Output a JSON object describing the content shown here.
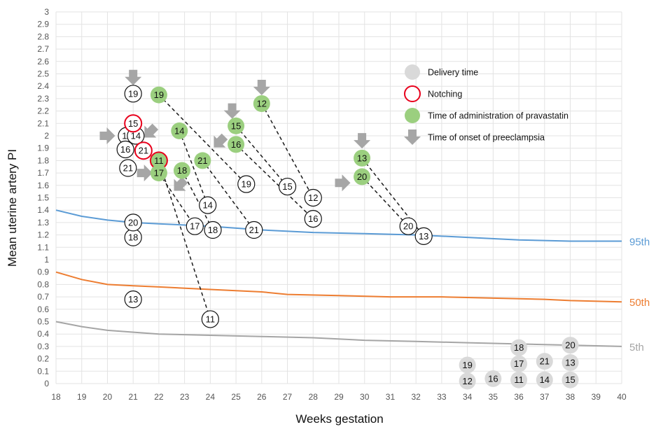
{
  "chart_data": {
    "type": "scatter",
    "title": "",
    "xlabel": "Weeks gestation",
    "ylabel": "Mean uterine artery PI",
    "xlim": [
      18,
      40
    ],
    "ylim": [
      0,
      3
    ],
    "x_ticks": [
      "18",
      "19",
      "20",
      "21",
      "22",
      "23",
      "24",
      "25",
      "26",
      "27",
      "28",
      "29",
      "30",
      "31",
      "32",
      "33",
      "34",
      "35",
      "36",
      "37",
      "38",
      "39",
      "40"
    ],
    "y_ticks": [
      "0",
      "0.1",
      "0.2",
      "0.3",
      "0.4",
      "0.5",
      "0.6",
      "0.7",
      "0.8",
      "0.9",
      "1",
      "1.1",
      "1.2",
      "1.3",
      "1.4",
      "1.5",
      "1.6",
      "1.7",
      "1.8",
      "1.9",
      "2",
      "2.1",
      "2.2",
      "2.3",
      "2.4",
      "2.5",
      "2.6",
      "2.7",
      "2.8",
      "2.9",
      "3"
    ],
    "grid": true,
    "legend_position": "top-right",
    "legend": [
      {
        "key": "delivery",
        "label": "Delivery time",
        "color": "#d9d9d9"
      },
      {
        "key": "notching",
        "label": "Notching",
        "color": "#e8001c"
      },
      {
        "key": "pravastatin",
        "label": "Time of administration of pravastatin",
        "color": "#9bcf7f"
      },
      {
        "key": "onset",
        "label": "Time of onset of preeclampsia",
        "color": "#a6a6a6"
      }
    ],
    "reference_curves": [
      {
        "label": "95th",
        "color": "#5b9bd5",
        "points": [
          [
            18,
            1.4
          ],
          [
            19,
            1.35
          ],
          [
            20,
            1.32
          ],
          [
            21,
            1.3
          ],
          [
            22,
            1.29
          ],
          [
            24,
            1.27
          ],
          [
            26,
            1.24
          ],
          [
            28,
            1.22
          ],
          [
            30,
            1.21
          ],
          [
            32,
            1.2
          ],
          [
            34,
            1.18
          ],
          [
            36,
            1.16
          ],
          [
            38,
            1.15
          ],
          [
            40,
            1.15
          ]
        ]
      },
      {
        "label": "50th",
        "color": "#ed7d31",
        "points": [
          [
            18,
            0.9
          ],
          [
            19,
            0.84
          ],
          [
            20,
            0.8
          ],
          [
            21,
            0.79
          ],
          [
            22,
            0.78
          ],
          [
            24,
            0.76
          ],
          [
            26,
            0.74
          ],
          [
            27,
            0.72
          ],
          [
            29,
            0.71
          ],
          [
            31,
            0.7
          ],
          [
            33,
            0.7
          ],
          [
            35,
            0.69
          ],
          [
            37,
            0.68
          ],
          [
            38,
            0.67
          ],
          [
            40,
            0.66
          ]
        ]
      },
      {
        "label": "5th",
        "color": "#a5a5a5",
        "points": [
          [
            18,
            0.5
          ],
          [
            19,
            0.46
          ],
          [
            20,
            0.43
          ],
          [
            22,
            0.4
          ],
          [
            24,
            0.39
          ],
          [
            26,
            0.38
          ],
          [
            28,
            0.37
          ],
          [
            30,
            0.35
          ],
          [
            32,
            0.34
          ],
          [
            34,
            0.33
          ],
          [
            36,
            0.32
          ],
          [
            38,
            0.31
          ],
          [
            40,
            0.3
          ]
        ]
      }
    ],
    "patients": [
      {
        "id": "11",
        "points": [
          {
            "x": 20.75,
            "y": 2.0,
            "type": "open"
          },
          {
            "x": 22.0,
            "y": 1.8,
            "type": "pravastatin",
            "notched": true
          },
          {
            "x": 24.0,
            "y": 0.52,
            "type": "open"
          },
          {
            "x": 36.0,
            "y": 0.03,
            "type": "delivery"
          }
        ]
      },
      {
        "id": "12",
        "points": [
          {
            "x": 26.0,
            "y": 2.26,
            "type": "pravastatin"
          },
          {
            "x": 28.0,
            "y": 1.5,
            "type": "open"
          },
          {
            "x": 34.0,
            "y": 0.02,
            "type": "delivery"
          }
        ]
      },
      {
        "id": "13",
        "points": [
          {
            "x": 21.0,
            "y": 0.68,
            "type": "open"
          },
          {
            "x": 29.9,
            "y": 1.82,
            "type": "pravastatin"
          },
          {
            "x": 32.3,
            "y": 1.19,
            "type": "open"
          },
          {
            "x": 38.0,
            "y": 0.17,
            "type": "delivery"
          }
        ]
      },
      {
        "id": "14",
        "points": [
          {
            "x": 21.1,
            "y": 2.0,
            "type": "open"
          },
          {
            "x": 22.8,
            "y": 2.04,
            "type": "pravastatin"
          },
          {
            "x": 23.9,
            "y": 1.44,
            "type": "open"
          },
          {
            "x": 37.0,
            "y": 0.03,
            "type": "delivery"
          }
        ]
      },
      {
        "id": "15",
        "points": [
          {
            "x": 21.0,
            "y": 2.1,
            "type": "open",
            "notched": true
          },
          {
            "x": 25.0,
            "y": 2.08,
            "type": "pravastatin"
          },
          {
            "x": 27.0,
            "y": 1.59,
            "type": "open"
          },
          {
            "x": 38.0,
            "y": 0.03,
            "type": "delivery"
          }
        ]
      },
      {
        "id": "16",
        "points": [
          {
            "x": 20.7,
            "y": 1.89,
            "type": "open"
          },
          {
            "x": 25.0,
            "y": 1.93,
            "type": "pravastatin"
          },
          {
            "x": 28.0,
            "y": 1.33,
            "type": "open"
          },
          {
            "x": 35.0,
            "y": 0.04,
            "type": "delivery"
          }
        ]
      },
      {
        "id": "17",
        "points": [
          {
            "x": 22.0,
            "y": 1.7,
            "type": "pravastatin"
          },
          {
            "x": 23.4,
            "y": 1.27,
            "type": "open"
          },
          {
            "x": 36.0,
            "y": 0.16,
            "type": "delivery"
          }
        ]
      },
      {
        "id": "18",
        "points": [
          {
            "x": 21.0,
            "y": 1.18,
            "type": "open"
          },
          {
            "x": 22.9,
            "y": 1.72,
            "type": "pravastatin"
          },
          {
            "x": 24.1,
            "y": 1.24,
            "type": "open"
          },
          {
            "x": 36.0,
            "y": 0.29,
            "type": "delivery"
          }
        ]
      },
      {
        "id": "19",
        "points": [
          {
            "x": 21.0,
            "y": 2.34,
            "type": "open"
          },
          {
            "x": 22.0,
            "y": 2.33,
            "type": "pravastatin"
          },
          {
            "x": 25.4,
            "y": 1.61,
            "type": "open"
          },
          {
            "x": 34.0,
            "y": 0.15,
            "type": "delivery"
          }
        ]
      },
      {
        "id": "20",
        "points": [
          {
            "x": 21.0,
            "y": 1.3,
            "type": "open"
          },
          {
            "x": 29.9,
            "y": 1.67,
            "type": "pravastatin"
          },
          {
            "x": 31.7,
            "y": 1.27,
            "type": "open"
          },
          {
            "x": 38.0,
            "y": 0.31,
            "type": "delivery"
          }
        ]
      },
      {
        "id": "21",
        "points": [
          {
            "x": 20.8,
            "y": 1.74,
            "type": "open"
          },
          {
            "x": 21.4,
            "y": 1.88,
            "type": "open",
            "notched": true
          },
          {
            "x": 23.7,
            "y": 1.8,
            "type": "pravastatin"
          },
          {
            "x": 25.7,
            "y": 1.24,
            "type": "open"
          },
          {
            "x": 37.0,
            "y": 0.18,
            "type": "delivery"
          }
        ]
      }
    ],
    "dashed_links": [
      {
        "id": "11",
        "from": [
          22.0,
          1.8
        ],
        "to": [
          24.0,
          0.52
        ]
      },
      {
        "id": "12",
        "from": [
          26.0,
          2.26
        ],
        "to": [
          28.0,
          1.5
        ]
      },
      {
        "id": "13",
        "from": [
          29.9,
          1.82
        ],
        "to": [
          32.3,
          1.19
        ]
      },
      {
        "id": "14",
        "from": [
          22.8,
          2.04
        ],
        "to": [
          23.9,
          1.44
        ]
      },
      {
        "id": "15",
        "from": [
          25.0,
          2.08
        ],
        "to": [
          27.0,
          1.59
        ]
      },
      {
        "id": "16",
        "from": [
          25.0,
          1.93
        ],
        "to": [
          28.0,
          1.33
        ]
      },
      {
        "id": "17",
        "from": [
          22.0,
          1.7
        ],
        "to": [
          23.4,
          1.27
        ]
      },
      {
        "id": "18",
        "from": [
          22.9,
          1.72
        ],
        "to": [
          24.1,
          1.24
        ]
      },
      {
        "id": "19",
        "from": [
          22.0,
          2.33
        ],
        "to": [
          25.4,
          1.61
        ]
      },
      {
        "id": "20",
        "from": [
          29.9,
          1.67
        ],
        "to": [
          31.7,
          1.27
        ]
      },
      {
        "id": "21",
        "from": [
          23.7,
          1.8
        ],
        "to": [
          25.7,
          1.24
        ]
      }
    ],
    "onset_arrows": [
      {
        "x": 21.0,
        "y": 2.47,
        "direction": "down"
      },
      {
        "x": 26.0,
        "y": 2.39,
        "direction": "down"
      },
      {
        "x": 24.85,
        "y": 2.2,
        "direction": "down"
      },
      {
        "x": 29.9,
        "y": 1.96,
        "direction": "down"
      },
      {
        "x": 20.0,
        "y": 2.0,
        "direction": "right"
      },
      {
        "x": 21.65,
        "y": 2.03,
        "direction": "down-left"
      },
      {
        "x": 24.35,
        "y": 1.95,
        "direction": "down-left"
      },
      {
        "x": 21.45,
        "y": 1.7,
        "direction": "right"
      },
      {
        "x": 22.8,
        "y": 1.6,
        "direction": "down-left"
      },
      {
        "x": 29.15,
        "y": 1.62,
        "direction": "right"
      }
    ]
  }
}
